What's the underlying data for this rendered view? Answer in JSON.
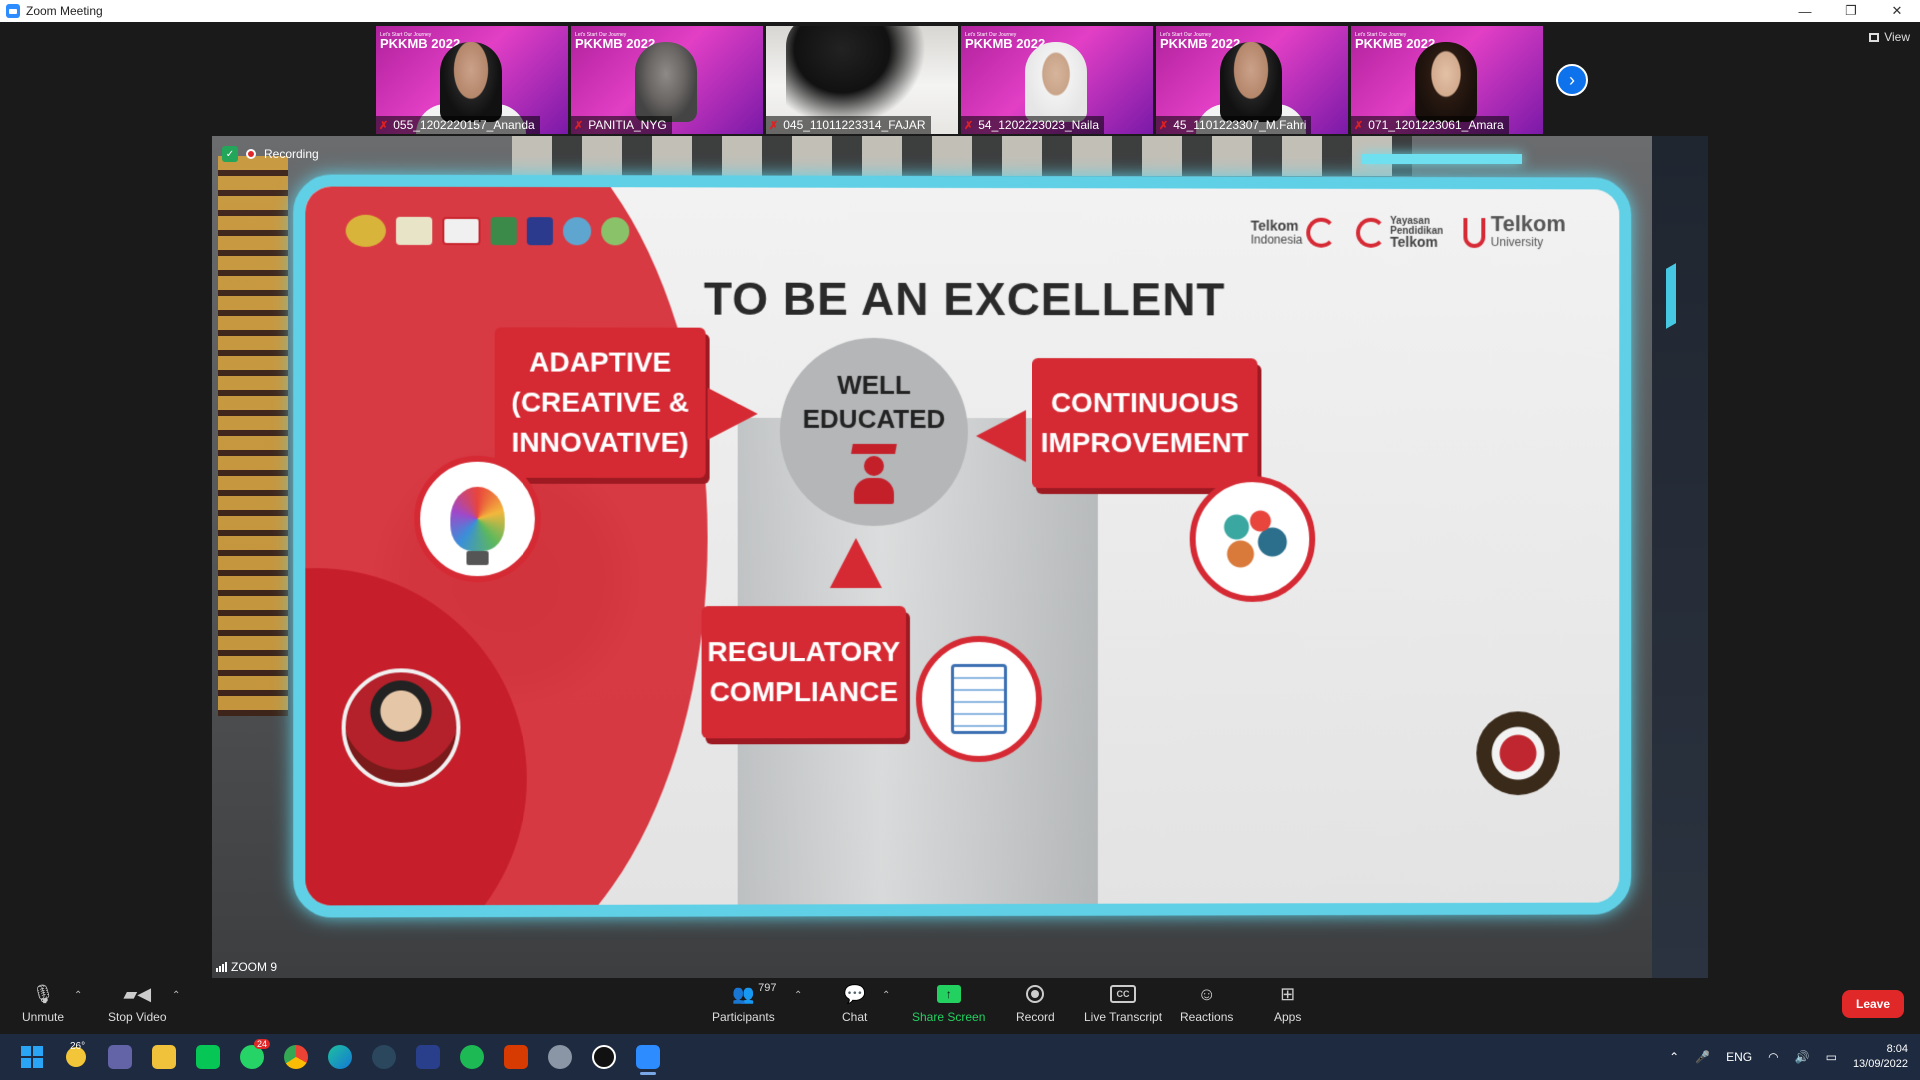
{
  "window": {
    "title": "Zoom Meeting",
    "controls": [
      "—",
      "❐",
      "✕"
    ]
  },
  "gallery": {
    "tiles": [
      {
        "name": "055_1202220157_Ananda",
        "badge": "PKKMB 2022",
        "badge_sub": "Let's Start Our Journey",
        "type": "pink",
        "avatar": "boy"
      },
      {
        "name": "PANITIA_NYG",
        "badge": "PKKMB 2022",
        "badge_sub": "Let's Start Our Journey",
        "type": "pink",
        "avatar": "girl-glasses"
      },
      {
        "name": "045_11011223314_FAJAR",
        "badge": "",
        "badge_sub": "",
        "type": "plain",
        "avatar": "dark"
      },
      {
        "name": "54_1202223023_Naila",
        "badge": "PKKMB 2022",
        "badge_sub": "Let's Start Our Journey",
        "type": "pink",
        "avatar": "hijab"
      },
      {
        "name": "45_1101223307_M.Fahri",
        "badge": "PKKMB 2022",
        "badge_sub": "Let's Start Our Journey",
        "type": "pink",
        "avatar": "boy"
      },
      {
        "name": "071_1201223061_Amara",
        "badge": "PKKMB 2022",
        "badge_sub": "Let's Start Our Journey",
        "type": "pink",
        "avatar": "girl"
      }
    ],
    "next_icon": "chevron-right-icon",
    "view_label": "View"
  },
  "share": {
    "recording_label": "Recording",
    "zoom_tag": "ZOOM 9",
    "slide": {
      "title": "TO BE AN EXCELLENT",
      "center": {
        "line1": "WELL",
        "line2": "EDUCATED"
      },
      "adaptive": {
        "line1": "ADAPTIVE",
        "line2": "(CREATIVE &",
        "line3": "INNOVATIVE)"
      },
      "continuous": {
        "line1": "CONTINUOUS",
        "line2": "IMPROVEMENT"
      },
      "regulatory": {
        "line1": "REGULATORY",
        "line2": "COMPLIANCE"
      },
      "logos_right": {
        "telkom_indonesia": {
          "l1": "Telkom",
          "l2": "Indonesia"
        },
        "yayasan": {
          "l1": "Yayasan",
          "l2": "Pendidikan",
          "l3": "Telkom"
        },
        "telkom_university": {
          "l1": "Telkom",
          "l2": "University"
        }
      }
    }
  },
  "toolbar": {
    "unmute": "Unmute",
    "stop_video": "Stop Video",
    "participants": "Participants",
    "participants_count": "797",
    "chat": "Chat",
    "share_screen": "Share Screen",
    "record": "Record",
    "live_transcript": "Live Transcript",
    "cc": "CC",
    "reactions": "Reactions",
    "apps": "Apps",
    "leave": "Leave"
  },
  "taskbar": {
    "weather": "26°",
    "whatsapp_badge": "24",
    "lang": "ENG",
    "time": "8:04",
    "date": "13/09/2022"
  }
}
